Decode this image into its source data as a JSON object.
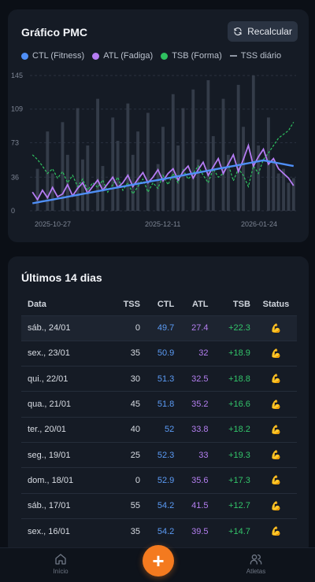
{
  "pmc": {
    "title": "Gráfico PMC",
    "recalc_label": "Recalcular",
    "legend": [
      {
        "label": "CTL (Fitness)",
        "color": "#4f8ff7",
        "kind": "dot"
      },
      {
        "label": "ATL (Fadiga)",
        "color": "#b57cf3",
        "kind": "dot"
      },
      {
        "label": "TSB (Forma)",
        "color": "#2fc160",
        "kind": "dot"
      },
      {
        "label": "TSS diário",
        "color": "#8f96a3",
        "kind": "dash"
      }
    ]
  },
  "chart_data": {
    "type": "line",
    "y_ticks": [
      "145",
      "109",
      "73",
      "36",
      "0"
    ],
    "ylim": [
      0,
      145
    ],
    "x_ticks": [
      "2025-10-27",
      "2025-12-11",
      "2026-01-24"
    ],
    "grid": true,
    "legend_position": "top-left",
    "x_start": "2025-10-15",
    "x_end": "2026-01-31",
    "series": [
      {
        "name": "CTL (Fitness)",
        "color": "#4f8ff7",
        "values": [
          8,
          9,
          10,
          11,
          12,
          13,
          14,
          15,
          16,
          17,
          18,
          19,
          20,
          21,
          22,
          23,
          24,
          25,
          26,
          27,
          28,
          29,
          30,
          31,
          32,
          33,
          34,
          35,
          36,
          37,
          38,
          39,
          40,
          41,
          42,
          43,
          44,
          45,
          46,
          47,
          48,
          49,
          50,
          51,
          52,
          53,
          54,
          53,
          52,
          51,
          50,
          49,
          48
        ]
      },
      {
        "name": "ATL (Fadiga)",
        "color": "#b57cf3",
        "values": [
          20,
          12,
          22,
          14,
          25,
          15,
          18,
          28,
          16,
          24,
          30,
          19,
          26,
          33,
          22,
          29,
          36,
          25,
          30,
          38,
          26,
          34,
          41,
          30,
          36,
          44,
          32,
          40,
          45,
          33,
          42,
          48,
          35,
          44,
          52,
          38,
          47,
          56,
          40,
          50,
          60,
          42,
          55,
          70,
          48,
          58,
          66,
          50,
          56,
          45,
          40,
          35,
          27
        ]
      },
      {
        "name": "TSB (Forma)",
        "color": "#2fc160",
        "values": [
          60,
          55,
          48,
          40,
          45,
          35,
          42,
          30,
          38,
          26,
          34,
          22,
          30,
          25,
          33,
          20,
          28,
          36,
          22,
          30,
          18,
          26,
          34,
          20,
          30,
          24,
          38,
          28,
          40,
          30,
          44,
          34,
          40,
          48,
          38,
          30,
          45,
          36,
          40,
          50,
          32,
          45,
          38,
          26,
          48,
          40,
          55,
          62,
          70,
          78,
          82,
          86,
          95
        ]
      },
      {
        "name": "TSS diário",
        "color": "#8f96a3",
        "kind": "bar",
        "values": [
          0,
          45,
          0,
          85,
          40,
          0,
          95,
          60,
          0,
          110,
          55,
          70,
          0,
          120,
          48,
          0,
          100,
          75,
          0,
          115,
          60,
          85,
          0,
          105,
          0,
          50,
          90,
          0,
          125,
          70,
          110,
          0,
          130,
          55,
          0,
          140,
          80,
          0,
          120,
          60,
          0,
          135,
          90,
          0,
          145,
          70,
          0,
          100,
          55,
          40,
          45,
          30,
          35
        ]
      }
    ]
  },
  "recent": {
    "title": "Últimos 14 dias",
    "columns": [
      "Data",
      "TSS",
      "CTL",
      "ATL",
      "TSB",
      "Status"
    ],
    "rows": [
      {
        "date": "sáb., 24/01",
        "tss": "0",
        "ctl": "49.7",
        "atl": "27.4",
        "tsb": "+22.3",
        "status": "💪"
      },
      {
        "date": "sex., 23/01",
        "tss": "35",
        "ctl": "50.9",
        "atl": "32",
        "tsb": "+18.9",
        "status": "💪"
      },
      {
        "date": "qui., 22/01",
        "tss": "30",
        "ctl": "51.3",
        "atl": "32.5",
        "tsb": "+18.8",
        "status": "💪"
      },
      {
        "date": "qua., 21/01",
        "tss": "45",
        "ctl": "51.8",
        "atl": "35.2",
        "tsb": "+16.6",
        "status": "💪"
      },
      {
        "date": "ter., 20/01",
        "tss": "40",
        "ctl": "52",
        "atl": "33.8",
        "tsb": "+18.2",
        "status": "💪"
      },
      {
        "date": "seg., 19/01",
        "tss": "25",
        "ctl": "52.3",
        "atl": "33",
        "tsb": "+19.3",
        "status": "💪"
      },
      {
        "date": "dom., 18/01",
        "tss": "0",
        "ctl": "52.9",
        "atl": "35.6",
        "tsb": "+17.3",
        "status": "💪"
      },
      {
        "date": "sáb., 17/01",
        "tss": "55",
        "ctl": "54.2",
        "atl": "41.5",
        "tsb": "+12.7",
        "status": "💪"
      },
      {
        "date": "sex., 16/01",
        "tss": "35",
        "ctl": "54.2",
        "atl": "39.5",
        "tsb": "+14.7",
        "status": "💪"
      }
    ]
  },
  "nav": {
    "home_label": "Início",
    "athletes_label": "Atletas",
    "fab_label": "+",
    "home_icon": "home-icon",
    "athletes_icon": "users-icon",
    "accent": "#f47a1f"
  }
}
